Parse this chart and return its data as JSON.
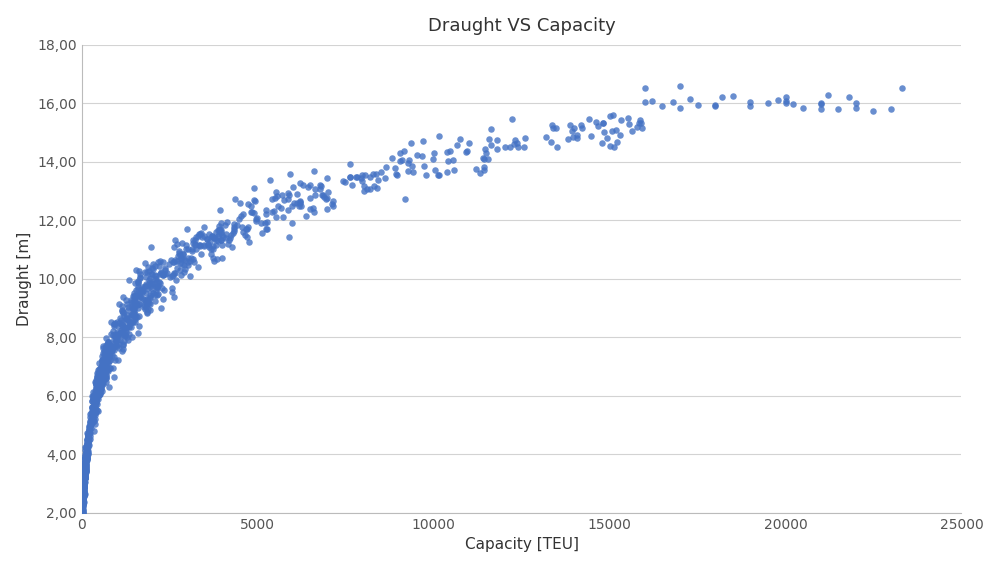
{
  "title": "Draught VS Capacity",
  "xlabel": "Capacity [TEU]",
  "ylabel": "Draught [m]",
  "xlim": [
    0,
    25000
  ],
  "ylim": [
    2.0,
    18.0
  ],
  "xticks": [
    0,
    5000,
    10000,
    15000,
    20000,
    25000
  ],
  "yticks": [
    2.0,
    4.0,
    6.0,
    8.0,
    10.0,
    12.0,
    14.0,
    16.0,
    18.0
  ],
  "dot_color": "#4472C4",
  "dot_size": 22,
  "dot_alpha": 0.8,
  "background_color": "#FFFFFF",
  "grid_color": "#D3D3D3",
  "title_fontsize": 13,
  "label_fontsize": 11
}
